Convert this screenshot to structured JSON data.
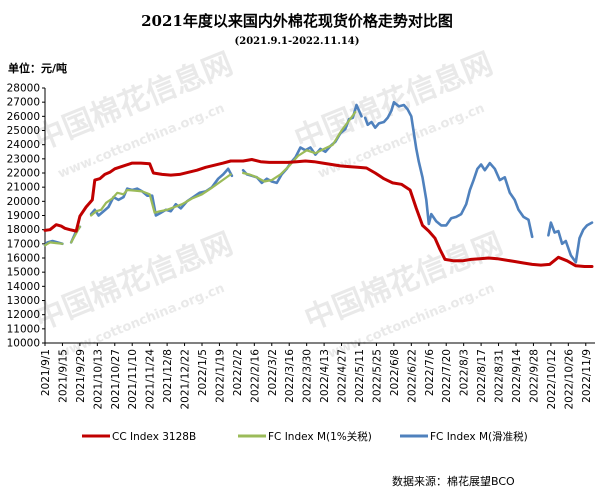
{
  "watermark": {
    "brand": "中国棉花信息网",
    "url": "www.cottonchina.org.cn"
  },
  "chart_data": {
    "type": "line",
    "title": "2021年度以来国内外棉花现货价格走势对比图",
    "subtitle": "(2021.9.1-2022.11.14)",
    "unit": "单位：元/吨",
    "ylim": [
      10000,
      28000
    ],
    "ytick_step": 1000,
    "grid": false,
    "legend_position": "bottom",
    "source": "数据来源：棉花展望BCO",
    "x_start": "2021-09-01",
    "x_end": "2022-11-14",
    "x_tick_labels": [
      "2021/9/1",
      "2021/9/15",
      "2021/9/29",
      "2021/10/13",
      "2021/10/27",
      "2021/11/10",
      "2021/11/24",
      "2021/12/8",
      "2021/12/22",
      "2022/1/5",
      "2022/1/19",
      "2022/2/2",
      "2022/2/16",
      "2022/3/2",
      "2022/3/16",
      "2022/3/30",
      "2022/4/13",
      "2022/4/27",
      "2022/5/11",
      "2022/5/25",
      "2022/6/8",
      "2022/6/22",
      "2022/7/6",
      "2022/7/20",
      "2022/8/3",
      "2022/8/17",
      "2022/8/31",
      "2022/9/14",
      "2022/9/28",
      "2022/10/12",
      "2022/10/26",
      "2022/11/9"
    ],
    "series": [
      {
        "name": "CC Index 3128B",
        "color": "#c00000",
        "points": [
          [
            "2021-09-01",
            17950
          ],
          [
            "2021-09-05",
            18000
          ],
          [
            "2021-09-10",
            18350
          ],
          [
            "2021-09-14",
            18250
          ],
          [
            "2021-09-17",
            18100
          ],
          [
            "2021-09-21",
            18000
          ],
          [
            "2021-09-26",
            17900
          ],
          [
            "2021-09-29",
            18950
          ],
          [
            "2021-10-04",
            19600
          ],
          [
            "2021-10-09",
            20100
          ],
          [
            "2021-10-11",
            21500
          ],
          [
            "2021-10-15",
            21600
          ],
          [
            "2021-10-19",
            21900
          ],
          [
            "2021-10-23",
            22050
          ],
          [
            "2021-10-27",
            22300
          ],
          [
            "2021-11-03",
            22500
          ],
          [
            "2021-11-10",
            22700
          ],
          [
            "2021-11-17",
            22700
          ],
          [
            "2021-11-24",
            22650
          ],
          [
            "2021-11-27",
            22000
          ],
          [
            "2021-12-04",
            21900
          ],
          [
            "2021-12-11",
            21850
          ],
          [
            "2021-12-18",
            21900
          ],
          [
            "2021-12-25",
            22050
          ],
          [
            "2022-01-01",
            22200
          ],
          [
            "2022-01-08",
            22400
          ],
          [
            "2022-01-15",
            22550
          ],
          [
            "2022-01-22",
            22700
          ],
          [
            "2022-01-28",
            22850
          ],
          [
            "2022-02-07",
            22850
          ],
          [
            "2022-02-14",
            22950
          ],
          [
            "2022-02-21",
            22800
          ],
          [
            "2022-02-28",
            22750
          ],
          [
            "2022-03-08",
            22750
          ],
          [
            "2022-03-15",
            22750
          ],
          [
            "2022-03-22",
            22800
          ],
          [
            "2022-03-29",
            22850
          ],
          [
            "2022-04-05",
            22800
          ],
          [
            "2022-04-12",
            22700
          ],
          [
            "2022-04-19",
            22600
          ],
          [
            "2022-04-26",
            22500
          ],
          [
            "2022-05-03",
            22450
          ],
          [
            "2022-05-10",
            22400
          ],
          [
            "2022-05-17",
            22350
          ],
          [
            "2022-05-24",
            22000
          ],
          [
            "2022-05-31",
            21600
          ],
          [
            "2022-06-07",
            21300
          ],
          [
            "2022-06-14",
            21200
          ],
          [
            "2022-06-21",
            20800
          ],
          [
            "2022-06-26",
            19500
          ],
          [
            "2022-07-01",
            18300
          ],
          [
            "2022-07-06",
            17900
          ],
          [
            "2022-07-11",
            17400
          ],
          [
            "2022-07-15",
            16600
          ],
          [
            "2022-07-19",
            15900
          ],
          [
            "2022-07-26",
            15800
          ],
          [
            "2022-08-02",
            15800
          ],
          [
            "2022-08-09",
            15900
          ],
          [
            "2022-08-16",
            15950
          ],
          [
            "2022-08-23",
            16000
          ],
          [
            "2022-08-30",
            15950
          ],
          [
            "2022-09-06",
            15850
          ],
          [
            "2022-09-13",
            15750
          ],
          [
            "2022-09-20",
            15650
          ],
          [
            "2022-09-27",
            15550
          ],
          [
            "2022-10-04",
            15500
          ],
          [
            "2022-10-11",
            15550
          ],
          [
            "2022-10-18",
            16050
          ],
          [
            "2022-10-25",
            15800
          ],
          [
            "2022-11-01",
            15450
          ],
          [
            "2022-11-08",
            15400
          ],
          [
            "2022-11-14",
            15400
          ]
        ]
      },
      {
        "name": "FC Index M(1%关税)",
        "color": "#9bbb59",
        "segments": [
          [
            [
              "2021-09-01",
              16900
            ],
            [
              "2021-09-05",
              17100
            ],
            [
              "2021-09-10",
              17050
            ],
            [
              "2021-09-15",
              17000
            ]
          ],
          [
            [
              "2021-09-22",
              17100
            ],
            [
              "2021-09-27",
              17900
            ],
            [
              "2021-09-29",
              18200
            ]
          ],
          [
            [
              "2021-10-08",
              19000
            ],
            [
              "2021-10-12",
              19300
            ],
            [
              "2021-10-16",
              19400
            ],
            [
              "2021-10-20",
              19900
            ],
            [
              "2021-10-25",
              20200
            ],
            [
              "2021-10-29",
              20600
            ],
            [
              "2021-11-03",
              20500
            ],
            [
              "2021-11-06",
              20800
            ],
            [
              "2021-11-12",
              20750
            ],
            [
              "2021-11-18",
              20700
            ],
            [
              "2021-11-24",
              20500
            ],
            [
              "2021-11-28",
              19200
            ],
            [
              "2021-12-02",
              19300
            ],
            [
              "2021-12-08",
              19400
            ],
            [
              "2021-12-14",
              19600
            ],
            [
              "2021-12-20",
              19800
            ],
            [
              "2021-12-28",
              20200
            ],
            [
              "2022-01-05",
              20500
            ],
            [
              "2022-01-12",
              20900
            ],
            [
              "2022-01-20",
              21400
            ],
            [
              "2022-01-28",
              21900
            ]
          ],
          [
            [
              "2022-02-07",
              22000
            ],
            [
              "2022-02-12",
              21900
            ],
            [
              "2022-02-18",
              21700
            ],
            [
              "2022-02-24",
              21400
            ],
            [
              "2022-03-02",
              21500
            ],
            [
              "2022-03-09",
              21900
            ],
            [
              "2022-03-16",
              22500
            ],
            [
              "2022-03-23",
              23200
            ],
            [
              "2022-03-30",
              23600
            ],
            [
              "2022-04-06",
              23400
            ],
            [
              "2022-04-13",
              23700
            ],
            [
              "2022-04-20",
              24000
            ],
            [
              "2022-04-27",
              25000
            ],
            [
              "2022-05-03",
              25700
            ],
            [
              "2022-05-08",
              26300
            ]
          ]
        ]
      },
      {
        "name": "FC Index M(滑准税)",
        "color": "#4f81bd",
        "segments": [
          [
            [
              "2021-09-01",
              16900
            ],
            [
              "2021-09-03",
              17100
            ],
            [
              "2021-09-07",
              17200
            ],
            [
              "2021-09-11",
              17100
            ],
            [
              "2021-09-15",
              17000
            ]
          ],
          [
            [
              "2021-09-22",
              17100
            ],
            [
              "2021-09-26",
              17900
            ],
            [
              "2021-09-29",
              18200
            ]
          ],
          [
            [
              "2021-10-08",
              19100
            ],
            [
              "2021-10-11",
              19400
            ],
            [
              "2021-10-14",
              19000
            ],
            [
              "2021-10-18",
              19300
            ],
            [
              "2021-10-22",
              19600
            ],
            [
              "2021-10-26",
              20300
            ],
            [
              "2021-10-30",
              20100
            ],
            [
              "2021-11-03",
              20300
            ],
            [
              "2021-11-06",
              20900
            ],
            [
              "2021-11-10",
              20800
            ],
            [
              "2021-11-14",
              20900
            ],
            [
              "2021-11-18",
              20700
            ],
            [
              "2021-11-22",
              20400
            ],
            [
              "2021-11-26",
              20400
            ],
            [
              "2021-11-29",
              19000
            ],
            [
              "2021-12-03",
              19200
            ],
            [
              "2021-12-07",
              19400
            ],
            [
              "2021-12-11",
              19300
            ],
            [
              "2021-12-15",
              19800
            ],
            [
              "2021-12-19",
              19500
            ],
            [
              "2021-12-24",
              20000
            ],
            [
              "2021-12-29",
              20300
            ],
            [
              "2022-01-03",
              20600
            ],
            [
              "2022-01-08",
              20700
            ],
            [
              "2022-01-13",
              21000
            ],
            [
              "2022-01-18",
              21600
            ],
            [
              "2022-01-22",
              21900
            ],
            [
              "2022-01-26",
              22300
            ],
            [
              "2022-01-29",
              21800
            ]
          ],
          [
            [
              "2022-02-07",
              22200
            ],
            [
              "2022-02-10",
              21900
            ],
            [
              "2022-02-14",
              21800
            ],
            [
              "2022-02-18",
              21700
            ],
            [
              "2022-02-22",
              21300
            ],
            [
              "2022-02-26",
              21600
            ],
            [
              "2022-03-02",
              21400
            ],
            [
              "2022-03-06",
              21300
            ],
            [
              "2022-03-10",
              21900
            ],
            [
              "2022-03-14",
              22300
            ],
            [
              "2022-03-17",
              22700
            ],
            [
              "2022-03-21",
              23100
            ],
            [
              "2022-03-25",
              23800
            ],
            [
              "2022-03-29",
              23600
            ],
            [
              "2022-04-02",
              23800
            ],
            [
              "2022-04-06",
              23300
            ],
            [
              "2022-04-10",
              23700
            ],
            [
              "2022-04-14",
              23500
            ],
            [
              "2022-04-18",
              23900
            ],
            [
              "2022-04-22",
              24200
            ],
            [
              "2022-04-26",
              24800
            ],
            [
              "2022-04-30",
              25100
            ],
            [
              "2022-05-03",
              25800
            ],
            [
              "2022-05-06",
              25900
            ],
            [
              "2022-05-09",
              26800
            ],
            [
              "2022-05-13",
              26000
            ]
          ],
          [
            [
              "2022-05-16",
              25900
            ],
            [
              "2022-05-18",
              25400
            ],
            [
              "2022-05-21",
              25600
            ],
            [
              "2022-05-24",
              25200
            ],
            [
              "2022-05-27",
              25500
            ],
            [
              "2022-05-31",
              25600
            ],
            [
              "2022-06-03",
              25900
            ],
            [
              "2022-06-06",
              26400
            ],
            [
              "2022-06-08",
              27000
            ],
            [
              "2022-06-12",
              26700
            ],
            [
              "2022-06-16",
              26800
            ],
            [
              "2022-06-19",
              26500
            ],
            [
              "2022-06-22",
              26000
            ],
            [
              "2022-06-26",
              23700
            ],
            [
              "2022-06-28",
              22800
            ],
            [
              "2022-07-01",
              21700
            ],
            [
              "2022-07-04",
              20100
            ],
            [
              "2022-07-06",
              18400
            ],
            [
              "2022-07-08",
              19100
            ],
            [
              "2022-07-12",
              18600
            ],
            [
              "2022-07-16",
              18300
            ],
            [
              "2022-07-20",
              18300
            ],
            [
              "2022-07-24",
              18800
            ],
            [
              "2022-07-28",
              18900
            ],
            [
              "2022-08-01",
              19100
            ],
            [
              "2022-08-05",
              19800
            ],
            [
              "2022-08-08",
              20800
            ],
            [
              "2022-08-11",
              21500
            ],
            [
              "2022-08-14",
              22300
            ],
            [
              "2022-08-17",
              22600
            ],
            [
              "2022-08-20",
              22200
            ],
            [
              "2022-08-24",
              22700
            ],
            [
              "2022-08-28",
              22300
            ],
            [
              "2022-09-01",
              21500
            ],
            [
              "2022-09-05",
              21700
            ],
            [
              "2022-09-09",
              20600
            ],
            [
              "2022-09-13",
              20100
            ],
            [
              "2022-09-16",
              19400
            ],
            [
              "2022-09-20",
              18900
            ],
            [
              "2022-09-24",
              18700
            ],
            [
              "2022-09-27",
              17500
            ]
          ],
          [
            [
              "2022-10-10",
              17600
            ],
            [
              "2022-10-12",
              18500
            ],
            [
              "2022-10-15",
              17800
            ],
            [
              "2022-10-18",
              17900
            ],
            [
              "2022-10-21",
              17000
            ],
            [
              "2022-10-24",
              17200
            ],
            [
              "2022-10-28",
              16200
            ],
            [
              "2022-11-01",
              15700
            ],
            [
              "2022-11-04",
              17400
            ],
            [
              "2022-11-07",
              18000
            ],
            [
              "2022-11-10",
              18300
            ],
            [
              "2022-11-14",
              18500
            ]
          ]
        ]
      }
    ]
  }
}
